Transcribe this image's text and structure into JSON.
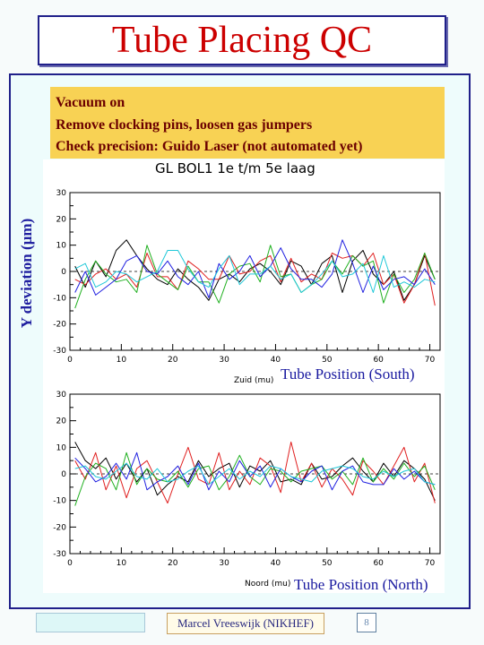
{
  "slide": {
    "title": "Tube Placing QC",
    "notes": [
      "Vacuum on",
      "Remove clocking pins, loosen gas jumpers",
      "Check precision: Guido Laser (not automated yet)"
    ],
    "y_axis_label": "Y deviation (µm)",
    "label_south": "Tube Position (South)",
    "label_north": "Tube Position (North)",
    "footer": {
      "author": "Marcel Vreeswijk (NIKHEF)",
      "page": "8"
    }
  },
  "chart_data": [
    {
      "type": "line",
      "title": "GL BOL1 1e t/m 5e laag",
      "xlabel": "Zuid (mu)",
      "ylabel": "",
      "xlim": [
        0,
        72
      ],
      "ylim": [
        -30,
        30
      ],
      "xticks": [
        0,
        10,
        20,
        30,
        40,
        50,
        60,
        70
      ],
      "yticks": [
        -30,
        -20,
        -10,
        0,
        10,
        20,
        30
      ],
      "reference_line": 0,
      "x": [
        1,
        3,
        5,
        7,
        9,
        11,
        13,
        15,
        17,
        19,
        21,
        23,
        25,
        27,
        29,
        31,
        33,
        35,
        37,
        39,
        41,
        43,
        45,
        47,
        49,
        51,
        53,
        55,
        57,
        59,
        61,
        63,
        65,
        67,
        69,
        71
      ],
      "series": [
        {
          "color": "#000000",
          "values": [
            2,
            -6,
            4,
            -2,
            8,
            12,
            6,
            1,
            -3,
            -5,
            1,
            -3,
            -6,
            -11,
            -3,
            -1,
            -4,
            1,
            3,
            0,
            -5,
            4,
            2,
            -5,
            3,
            6,
            -8,
            4,
            8,
            -1,
            -5,
            0,
            -11,
            -5,
            6,
            -3
          ]
        },
        {
          "color": "#e02020",
          "values": [
            -3,
            -5,
            -1,
            1,
            -3,
            -1,
            -6,
            7,
            -2,
            -2,
            -7,
            4,
            1,
            -3,
            -3,
            6,
            -1,
            0,
            4,
            6,
            -4,
            5,
            -4,
            -1,
            -3,
            7,
            5,
            6,
            2,
            7,
            -5,
            -1,
            -12,
            -5,
            7,
            -13
          ]
        },
        {
          "color": "#20b020",
          "values": [
            -14,
            -3,
            4,
            -1,
            -4,
            -3,
            -8,
            10,
            -1,
            -4,
            -7,
            2,
            -4,
            -4,
            -12,
            -1,
            2,
            3,
            -4,
            10,
            -2,
            -1,
            -8,
            -5,
            -3,
            4,
            -1,
            6,
            2,
            4,
            -12,
            -1,
            -8,
            -3,
            7,
            -3
          ]
        },
        {
          "color": "#2020e0",
          "values": [
            -8,
            0,
            -9,
            -6,
            -3,
            4,
            6,
            0,
            -1,
            4,
            -2,
            -5,
            0,
            -10,
            3,
            -3,
            0,
            6,
            -2,
            2,
            9,
            1,
            -3,
            -3,
            -6,
            -1,
            12,
            3,
            -8,
            2,
            -7,
            -3,
            -2,
            -5,
            1,
            -5
          ]
        },
        {
          "color": "#20c8d8",
          "values": [
            1,
            3,
            -6,
            -4,
            0,
            -1,
            -4,
            -2,
            0,
            8,
            8,
            1,
            -4,
            -6,
            1,
            6,
            -5,
            -1,
            -1,
            2,
            -3,
            -1,
            -8,
            -5,
            -1,
            4,
            -2,
            -1,
            3,
            -8,
            6,
            -6,
            -4,
            -6,
            -3,
            -4
          ]
        }
      ]
    },
    {
      "type": "line",
      "title": "",
      "xlabel": "Noord (mu)",
      "ylabel": "",
      "xlim": [
        0,
        72
      ],
      "ylim": [
        -30,
        30
      ],
      "xticks": [
        0,
        10,
        20,
        30,
        40,
        50,
        60,
        70
      ],
      "yticks": [
        -30,
        -20,
        -10,
        0,
        10,
        20,
        30
      ],
      "reference_line": 0,
      "x": [
        1,
        3,
        5,
        7,
        9,
        11,
        13,
        15,
        17,
        19,
        21,
        23,
        25,
        27,
        29,
        31,
        33,
        35,
        37,
        39,
        41,
        43,
        45,
        47,
        49,
        51,
        53,
        55,
        57,
        59,
        61,
        63,
        65,
        67,
        69,
        71
      ],
      "series": [
        {
          "color": "#000000",
          "values": [
            12,
            5,
            2,
            6,
            -2,
            4,
            -3,
            2,
            -8,
            -4,
            -1,
            -3,
            5,
            -1,
            2,
            4,
            -5,
            3,
            1,
            5,
            -3,
            -2,
            -4,
            4,
            -2,
            -1,
            3,
            6,
            1,
            -3,
            4,
            -1,
            5,
            2,
            -2,
            -10
          ]
        },
        {
          "color": "#e02020",
          "values": [
            5,
            -2,
            8,
            -6,
            3,
            -9,
            2,
            5,
            -3,
            -11,
            0,
            10,
            -2,
            -4,
            8,
            -6,
            1,
            -4,
            6,
            3,
            -7,
            12,
            -3,
            4,
            -5,
            2,
            -2,
            -8,
            5,
            1,
            -4,
            3,
            10,
            -3,
            4,
            -11
          ]
        },
        {
          "color": "#20b020",
          "values": [
            -12,
            -1,
            4,
            2,
            -6,
            8,
            -4,
            2,
            -2,
            -3,
            1,
            -5,
            2,
            3,
            -6,
            -1,
            7,
            -1,
            -4,
            2,
            1,
            -3,
            1,
            2,
            3,
            -2,
            1,
            -4,
            6,
            -3,
            2,
            -2,
            4,
            -1,
            3,
            -6
          ]
        },
        {
          "color": "#2020e0",
          "values": [
            6,
            2,
            -3,
            -1,
            4,
            -2,
            8,
            -6,
            -3,
            -1,
            3,
            -4,
            4,
            -6,
            1,
            -3,
            5,
            -1,
            3,
            -5,
            2,
            -1,
            -3,
            1,
            3,
            -6,
            1,
            3,
            -3,
            -4,
            -4,
            2,
            -2,
            1,
            -3,
            -4
          ]
        },
        {
          "color": "#20c8d8",
          "values": [
            2,
            3,
            -1,
            -2,
            1,
            4,
            -1,
            -2,
            2,
            -3,
            -2,
            1,
            3,
            -4,
            -1,
            2,
            -2,
            1,
            -1,
            3,
            2,
            -1,
            -2,
            -3,
            1,
            2,
            3,
            2,
            -1,
            -2,
            1,
            -1,
            1,
            2,
            -3,
            -4
          ]
        }
      ]
    }
  ]
}
